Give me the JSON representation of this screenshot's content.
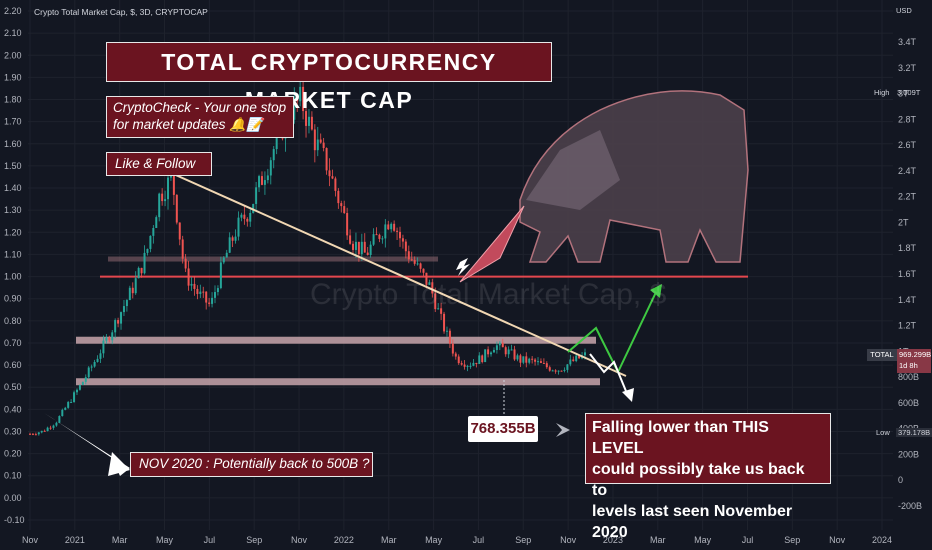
{
  "header": {
    "title": "Crypto Total Market Cap, $, 3D, CRYPTOCAP"
  },
  "annotations": {
    "title": "TOTAL  CRYPTOCURRENCY  MARKET  CAP",
    "promo_line1": "CryptoCheck - Your one stop",
    "promo_line2": "for market updates 🔔📝",
    "follow": "Like  &  Follow",
    "nov": "NOV 2020 : Potentially back to 500B ?",
    "level": "768.355B",
    "warning_line1": "Falling lower than THIS LEVEL",
    "warning_line2": "could possibly take us back to",
    "warning_line3": "levels last seen November 2020",
    "watermark_big": "TOTAL",
    "watermark_small": "Crypto Total Market Cap, $"
  },
  "right_axis": {
    "unit": "USD",
    "high_label": "High",
    "high_value": "3.009T",
    "low_label": "Low",
    "low_value": "379.178B",
    "total_label": "TOTAL",
    "total_value": "969.299B",
    "total_sub": "1d 8h"
  },
  "colors": {
    "background": "#131722",
    "up": "#26a69a",
    "down": "#ef5350",
    "zone": "#c9a6ab",
    "line": "#e4474e",
    "trend": "#f1d7b3",
    "annotation_bg": "#6b1420"
  },
  "chart_data": {
    "type": "candlestick",
    "title": "Crypto Total Market Cap, $, 3D, CRYPTOCAP",
    "x_ticks": [
      "Nov",
      "2021",
      "Mar",
      "May",
      "Jul",
      "Sep",
      "Nov",
      "2022",
      "Mar",
      "May",
      "Jul",
      "Sep",
      "Nov",
      "2023",
      "Mar",
      "May",
      "Jul",
      "Sep",
      "Nov",
      "2024"
    ],
    "left_axis_ticks": [
      "2.20",
      "2.10",
      "2.00",
      "1.90",
      "1.80",
      "1.70",
      "1.60",
      "1.50",
      "1.40",
      "1.30",
      "1.20",
      "1.10",
      "1.00",
      "0.90",
      "0.80",
      "0.70",
      "0.60",
      "0.50",
      "0.40",
      "0.30",
      "0.20",
      "0.10",
      "0.00",
      "-0.10"
    ],
    "right_axis_ticks": [
      "3.4T",
      "3.2T",
      "3T",
      "2.8T",
      "2.6T",
      "2.4T",
      "2.2T",
      "2T",
      "1.8T",
      "1.6T",
      "1.4T",
      "1.2T",
      "1T",
      "800B",
      "600B",
      "400B",
      "200B",
      "0",
      "-200B"
    ],
    "close_series_T": [
      0.36,
      0.38,
      0.45,
      0.6,
      0.75,
      0.92,
      1.1,
      1.3,
      1.5,
      1.75,
      2.2,
      2.35,
      1.6,
      1.45,
      1.35,
      1.7,
      1.95,
      2.1,
      2.35,
      2.6,
      2.85,
      2.95,
      2.65,
      2.45,
      2.15,
      1.85,
      1.75,
      1.9,
      2.05,
      1.8,
      1.65,
      1.5,
      1.2,
      0.95,
      0.9,
      0.95,
      1.05,
      1.0,
      0.93,
      0.92,
      0.88,
      0.86,
      0.92,
      0.97
    ],
    "levels": [
      {
        "label": "resistance",
        "value_T": 1.58
      },
      {
        "label": "zone_high",
        "value_T": 1.09
      },
      {
        "label": "zone_mid",
        "value_T": 1.72
      },
      {
        "label": "support",
        "value_T": 0.768
      }
    ],
    "high": 3.009,
    "low": 0.379178,
    "last": 0.969299
  }
}
